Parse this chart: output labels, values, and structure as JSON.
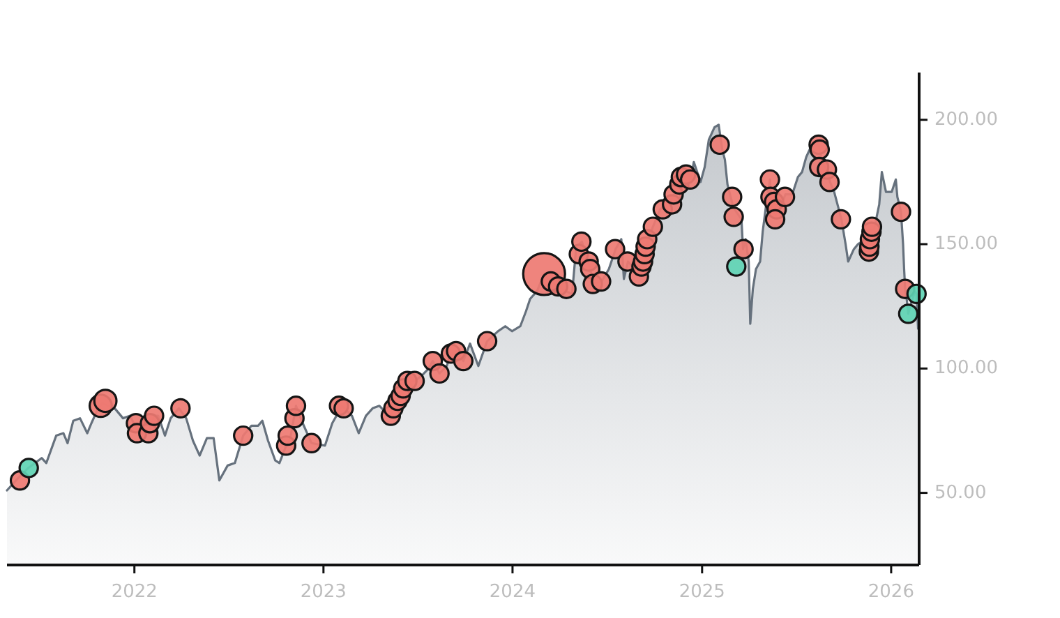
{
  "chart_data": {
    "type": "area",
    "xlim": [
      "2021-04-30",
      "2026-02-24"
    ],
    "xticks": [
      "2022",
      "2023",
      "2024",
      "2025",
      "2026"
    ],
    "ylim": [
      21,
      219
    ],
    "yticks": [
      {
        "value": 50,
        "label": "50.00"
      },
      {
        "value": 100,
        "label": "100.00"
      },
      {
        "value": 150,
        "label": "150.00"
      },
      {
        "value": 200,
        "label": "200.00"
      }
    ],
    "series": [
      {
        "color": "#66717d",
        "x": [
          "2021-04-30",
          "2021-05-22",
          "2021-06-10",
          "2021-07-06",
          "2021-07-15",
          "2021-08-03",
          "2021-08-17",
          "2021-08-25",
          "2021-09-05",
          "2021-09-18",
          "2021-10-02",
          "2021-10-10",
          "2021-10-23",
          "2021-10-31",
          "2021-11-24",
          "2021-12-10",
          "2021-12-24",
          "2022-01-04",
          "2022-01-12",
          "2022-01-28",
          "2022-02-08",
          "2022-02-16",
          "2022-03-01",
          "2022-03-12",
          "2022-03-28",
          "2022-04-11",
          "2022-04-24",
          "2022-05-07",
          "2022-05-21",
          "2022-06-03",
          "2022-06-14",
          "2022-06-30",
          "2022-07-14",
          "2022-07-30",
          "2022-08-15",
          "2022-08-28",
          "2022-09-05",
          "2022-09-16",
          "2022-09-30",
          "2022-10-08",
          "2022-10-21",
          "2022-10-29",
          "2022-11-09",
          "2022-11-22",
          "2022-12-09",
          "2023-01-04",
          "2023-01-18",
          "2023-02-06",
          "2023-02-25",
          "2023-03-10",
          "2023-03-24",
          "2023-04-06",
          "2023-04-19",
          "2023-05-03",
          "2023-05-11",
          "2023-05-24",
          "2023-06-04",
          "2023-06-12",
          "2023-06-26",
          "2023-07-09",
          "2023-07-23",
          "2023-07-31",
          "2023-08-13",
          "2023-08-27",
          "2023-09-04",
          "2023-09-14",
          "2023-09-28",
          "2023-10-11",
          "2023-10-27",
          "2023-11-13",
          "2023-12-04",
          "2023-12-18",
          "2023-12-31",
          "2024-01-16",
          "2024-01-27",
          "2024-02-04",
          "2024-02-17",
          "2024-03-02",
          "2024-03-15",
          "2024-03-29",
          "2024-04-14",
          "2024-04-25",
          "2024-05-03",
          "2024-05-14",
          "2024-05-22",
          "2024-05-30",
          "2024-06-05",
          "2024-06-21",
          "2024-07-05",
          "2024-07-18",
          "2024-07-29",
          "2024-08-03",
          "2024-08-11",
          "2024-08-24",
          "2024-09-09",
          "2024-09-15",
          "2024-09-28",
          "2024-10-12",
          "2024-10-31",
          "2024-11-08",
          "2024-11-19",
          "2024-11-27",
          "2024-12-10",
          "2024-12-16",
          "2024-12-29",
          "2025-01-06",
          "2025-01-14",
          "2025-01-25",
          "2025-02-02",
          "2025-02-09",
          "2025-02-14",
          "2025-02-19",
          "2025-03-02",
          "2025-03-08",
          "2025-03-18",
          "2025-03-21",
          "2025-03-26",
          "2025-04-01",
          "2025-04-04",
          "2025-04-09",
          "2025-04-15",
          "2025-04-23",
          "2025-04-28",
          "2025-05-06",
          "2025-05-12",
          "2025-05-15",
          "2025-05-23",
          "2025-06-03",
          "2025-06-11",
          "2025-06-24",
          "2025-07-05",
          "2025-07-13",
          "2025-07-21",
          "2025-08-01",
          "2025-08-14",
          "2025-08-22",
          "2025-08-31",
          "2025-09-05",
          "2025-09-13",
          "2025-09-27",
          "2025-10-05",
          "2025-10-10",
          "2025-10-21",
          "2025-10-29",
          "2025-11-12",
          "2025-11-20",
          "2025-11-28",
          "2025-12-09",
          "2025-12-14",
          "2025-12-22",
          "2026-01-02",
          "2026-01-10",
          "2026-01-13",
          "2026-01-20",
          "2026-01-24",
          "2026-01-26",
          "2026-01-28",
          "2026-01-31",
          "2026-02-03",
          "2026-02-08",
          "2026-02-16",
          "2026-02-19",
          "2026-02-22"
        ],
        "values": [
          51,
          56,
          60,
          64,
          62,
          73,
          74,
          70,
          79,
          80,
          74,
          78,
          84,
          86,
          84,
          80,
          81,
          76,
          74,
          74,
          81,
          81,
          73,
          80,
          84,
          80,
          71,
          65,
          72,
          72,
          55,
          61,
          62,
          73,
          77,
          77,
          79,
          71,
          63,
          62,
          69,
          72,
          85,
          78,
          70,
          69,
          78,
          85,
          81,
          74,
          81,
          84,
          85,
          82,
          81,
          87,
          92,
          95,
          95,
          97,
          100,
          103,
          98,
          101,
          106,
          107,
          103,
          110,
          101,
          111,
          115,
          117,
          115,
          117,
          123,
          128,
          131,
          138,
          135,
          133,
          131,
          130,
          149,
          151,
          145,
          140,
          134,
          135,
          140,
          148,
          152,
          136,
          143,
          140,
          138,
          149,
          157,
          164,
          167,
          170,
          168,
          179,
          176,
          183,
          175,
          181,
          192,
          197,
          198,
          188,
          184,
          174,
          165,
          163,
          160,
          148,
          152,
          143,
          118,
          132,
          140,
          143,
          155,
          168,
          176,
          165,
          162,
          166,
          170,
          170,
          177,
          179,
          185,
          190,
          190,
          182,
          180,
          175,
          171,
          160,
          150,
          143,
          148,
          150,
          152,
          147,
          155,
          166,
          179,
          171,
          171,
          176,
          169,
          163,
          150,
          140,
          132,
          128,
          122,
          126,
          131,
          130,
          116
        ]
      },
      {
        "type": "bubble",
        "color": "#ee7a72",
        "x": [
          "2021-05-25",
          "2021-10-28",
          "2021-11-06",
          "2022-01-04",
          "2022-01-06",
          "2022-01-28",
          "2022-01-31",
          "2022-02-08",
          "2022-03-31",
          "2022-07-30",
          "2022-10-21",
          "2022-10-24",
          "2022-11-06",
          "2022-11-09",
          "2022-12-09",
          "2023-01-31",
          "2023-02-09",
          "2023-05-11",
          "2023-05-16",
          "2023-05-24",
          "2023-05-30",
          "2023-06-04",
          "2023-06-12",
          "2023-06-26",
          "2023-07-31",
          "2023-08-13",
          "2023-09-04",
          "2023-09-14",
          "2023-09-28",
          "2023-11-13",
          "2024-03-02",
          "2024-03-15",
          "2024-03-29",
          "2024-04-14",
          "2024-05-08",
          "2024-05-13",
          "2024-05-27",
          "2024-05-30",
          "2024-06-04",
          "2024-06-20",
          "2024-07-17",
          "2024-08-10",
          "2024-09-01",
          "2024-09-06",
          "2024-09-09",
          "2024-09-12",
          "2024-09-14",
          "2024-09-17",
          "2024-09-28",
          "2024-10-17",
          "2024-11-04",
          "2024-11-07",
          "2024-11-18",
          "2024-11-21",
          "2024-12-01",
          "2024-12-09",
          "2025-02-04",
          "2025-02-28",
          "2025-03-03",
          "2025-03-22",
          "2025-05-12",
          "2025-05-13",
          "2025-05-20",
          "2025-05-25",
          "2025-05-22",
          "2025-06-10",
          "2025-08-14",
          "2025-08-16",
          "2025-08-15",
          "2025-08-30",
          "2025-09-04",
          "2025-09-26",
          "2025-11-19",
          "2025-11-20",
          "2025-11-21",
          "2025-11-24",
          "2025-11-25",
          "2026-01-20",
          "2026-01-28"
        ],
        "values": [
          55,
          85,
          87,
          78,
          74,
          74,
          78,
          81,
          84,
          73,
          69,
          73,
          80,
          85,
          70,
          85,
          84,
          81,
          84,
          87,
          89,
          92,
          95,
          95,
          103,
          98,
          106,
          107,
          103,
          111,
          138,
          135,
          133,
          132,
          146,
          151,
          143,
          140,
          134,
          135,
          148,
          143,
          137,
          141,
          143,
          146,
          149,
          152,
          157,
          164,
          166,
          170,
          174,
          177,
          178,
          176,
          190,
          169,
          161,
          148,
          176,
          169,
          167,
          164,
          160,
          169,
          190,
          188,
          181,
          180,
          175,
          160,
          147,
          149,
          152,
          155,
          157,
          163,
          132
        ],
        "sizes": [
          0.19,
          0.28,
          0.28,
          0.19,
          0.19,
          0.19,
          0.19,
          0.19,
          0.19,
          0.19,
          0.19,
          0.19,
          0.19,
          0.19,
          0.19,
          0.19,
          0.19,
          0.19,
          0.19,
          0.19,
          0.19,
          0.19,
          0.19,
          0.19,
          0.19,
          0.19,
          0.19,
          0.19,
          0.19,
          0.19,
          1,
          0.19,
          0.19,
          0.19,
          0.19,
          0.19,
          0.19,
          0.19,
          0.19,
          0.19,
          0.19,
          0.19,
          0.19,
          0.19,
          0.19,
          0.19,
          0.19,
          0.19,
          0.19,
          0.19,
          0.19,
          0.19,
          0.19,
          0.19,
          0.19,
          0.19,
          0.19,
          0.19,
          0.19,
          0.19,
          0.19,
          0.19,
          0.19,
          0.19,
          0.19,
          0.19,
          0.19,
          0.19,
          0.19,
          0.19,
          0.19,
          0.19,
          0.19,
          0.19,
          0.19,
          0.19,
          0.19,
          0.19,
          0.19
        ]
      },
      {
        "type": "bubble",
        "color": "#5fd4b4",
        "x": [
          "2021-06-11",
          "2025-03-08",
          "2026-02-03",
          "2026-02-19"
        ],
        "values": [
          60,
          141,
          122,
          130
        ],
        "sizes": [
          0.19,
          0.19,
          0.19,
          0.19
        ]
      }
    ]
  }
}
